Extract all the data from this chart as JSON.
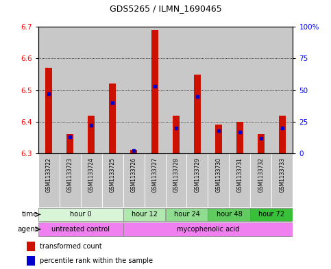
{
  "title": "GDS5265 / ILMN_1690465",
  "samples": [
    "GSM1133722",
    "GSM1133723",
    "GSM1133724",
    "GSM1133725",
    "GSM1133726",
    "GSM1133727",
    "GSM1133728",
    "GSM1133729",
    "GSM1133730",
    "GSM1133731",
    "GSM1133732",
    "GSM1133733"
  ],
  "red_values": [
    6.57,
    6.36,
    6.42,
    6.52,
    6.31,
    6.69,
    6.42,
    6.55,
    6.39,
    6.4,
    6.36,
    6.42
  ],
  "blue_values_pct": [
    47,
    13,
    22,
    40,
    2,
    53,
    20,
    45,
    18,
    17,
    12,
    20
  ],
  "ylim_left": [
    6.3,
    6.7
  ],
  "yticks_left": [
    6.3,
    6.4,
    6.5,
    6.6,
    6.7
  ],
  "ytick_labels_right": [
    "0",
    "25",
    "50",
    "75",
    "100%"
  ],
  "base_value": 6.3,
  "time_groups": [
    {
      "label": "hour 0",
      "indices": [
        0,
        1,
        2,
        3
      ],
      "color": "#d8f5d8"
    },
    {
      "label": "hour 12",
      "indices": [
        4,
        5
      ],
      "color": "#b0e8b0"
    },
    {
      "label": "hour 24",
      "indices": [
        6,
        7
      ],
      "color": "#90dc90"
    },
    {
      "label": "hour 48",
      "indices": [
        8,
        9
      ],
      "color": "#60cc60"
    },
    {
      "label": "hour 72",
      "indices": [
        10,
        11
      ],
      "color": "#38c038"
    }
  ],
  "agent_groups": [
    {
      "label": "untreated control",
      "indices": [
        0,
        1,
        2,
        3
      ],
      "color": "#f080f0"
    },
    {
      "label": "mycophenolic acid",
      "indices": [
        4,
        5,
        6,
        7,
        8,
        9,
        10,
        11
      ],
      "color": "#f080f0"
    }
  ],
  "bar_color": "#cc1100",
  "dot_color": "#0000cc",
  "grid_color": "#000000",
  "bg_color": "#ffffff",
  "sample_bg": "#c8c8c8",
  "legend_red": "transformed count",
  "legend_blue": "percentile rank within the sample",
  "bar_width": 0.32
}
